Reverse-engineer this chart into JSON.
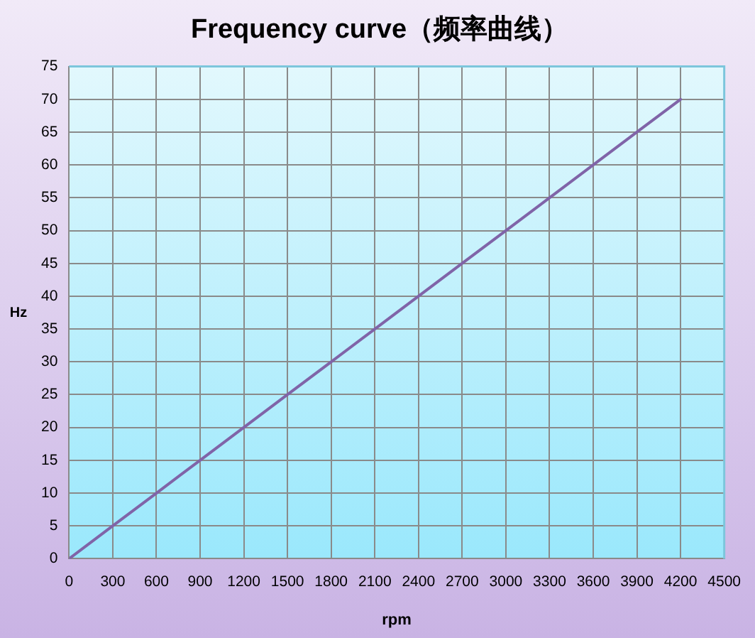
{
  "chart_data": {
    "type": "line",
    "title": "Frequency curve（频率曲线）",
    "xlabel": "rpm",
    "ylabel": "Hz",
    "x": [
      0,
      300,
      600,
      900,
      1200,
      1500,
      1800,
      2100,
      2400,
      2700,
      3000,
      3300,
      3600,
      3900,
      4200
    ],
    "series": [
      {
        "color": "#8064a8",
        "values": [
          0,
          5,
          10,
          15,
          20,
          25,
          30,
          35,
          40,
          45,
          50,
          55,
          60,
          65,
          70
        ]
      }
    ],
    "xlim": [
      0,
      4500
    ],
    "xticks": [
      0,
      300,
      600,
      900,
      1200,
      1500,
      1800,
      2100,
      2400,
      2700,
      3000,
      3300,
      3600,
      3900,
      4200,
      4500
    ],
    "ylim": [
      0,
      75
    ],
    "yticks": [
      0,
      5,
      10,
      15,
      20,
      25,
      30,
      35,
      40,
      45,
      50,
      55,
      60,
      65,
      70,
      75
    ],
    "grid": true,
    "marker": "none",
    "line_style": "solid"
  }
}
